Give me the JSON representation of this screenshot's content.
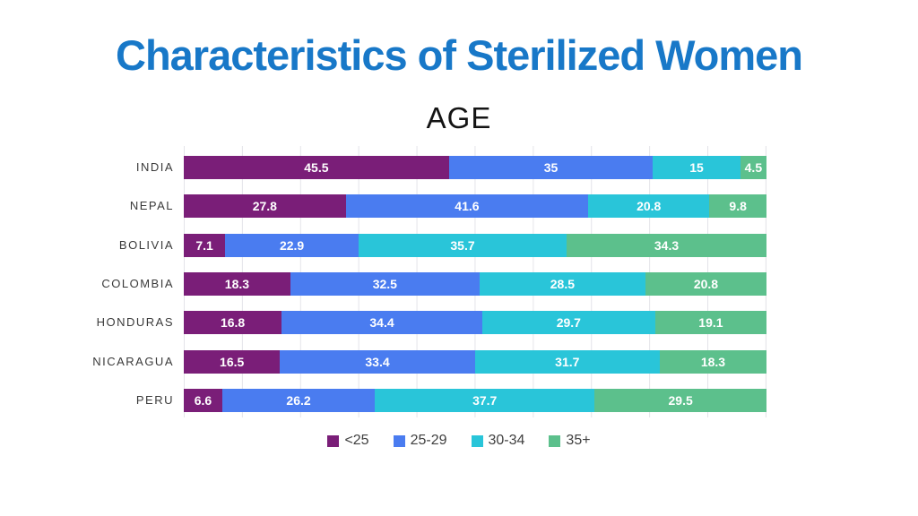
{
  "title": "Characteristics of Sterilized Women",
  "chart_data": {
    "type": "bar",
    "orientation": "horizontal",
    "stacked": true,
    "stacked_to_100_percent": true,
    "title": "AGE",
    "categories": [
      "INDIA",
      "NEPAL",
      "BOLIVIA",
      "COLOMBIA",
      "HONDURAS",
      "NICARAGUA",
      "PERU"
    ],
    "series": [
      {
        "name": "<25",
        "color": "#7A1E78",
        "values": [
          45.5,
          27.8,
          7.1,
          18.3,
          16.8,
          16.5,
          6.6
        ]
      },
      {
        "name": "25-29",
        "color": "#4A7CF0",
        "values": [
          35,
          41.6,
          22.9,
          32.5,
          34.4,
          33.4,
          26.2
        ]
      },
      {
        "name": "30-34",
        "color": "#29C5D9",
        "values": [
          15,
          20.8,
          35.7,
          28.5,
          29.7,
          31.7,
          37.7
        ]
      },
      {
        "name": "35+",
        "color": "#5CC08C",
        "values": [
          4.5,
          9.8,
          34.3,
          20.8,
          19.1,
          18.3,
          29.5
        ]
      }
    ],
    "xlim": [
      0,
      100
    ],
    "gridlines": "vertical every 10%",
    "legend_position": "bottom",
    "value_labels": "inside segments, white"
  },
  "colors": {
    "title": "#1878C8",
    "background": "#FFFFFF",
    "gridline": "#E4E4E9",
    "category_text": "#3A3A3A",
    "value_text": "#FFFFFF",
    "legend_text": "#404040"
  }
}
